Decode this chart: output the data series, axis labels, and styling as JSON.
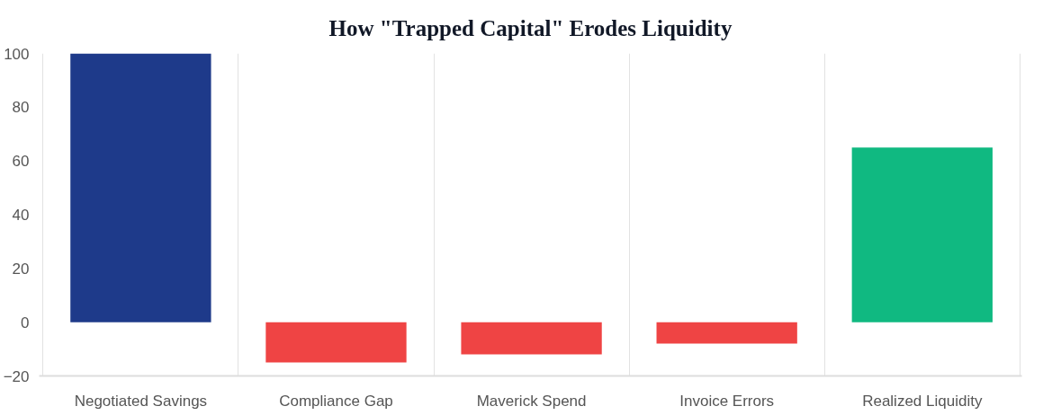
{
  "chart_data": {
    "type": "bar",
    "title": "How \"Trapped Capital\" Erodes Liquidity",
    "categories": [
      "Negotiated Savings",
      "Compliance Gap",
      "Maverick Spend",
      "Invoice Errors",
      "Realized Liquidity"
    ],
    "values": [
      100,
      -15,
      -12,
      -8,
      65
    ],
    "colors": [
      "#1e3a8a",
      "#ef4444",
      "#ef4444",
      "#ef4444",
      "#10b981"
    ],
    "ylim": [
      -20,
      100
    ],
    "yticks": [
      -20,
      0,
      20,
      40,
      60,
      80,
      100
    ],
    "grid": "x"
  }
}
